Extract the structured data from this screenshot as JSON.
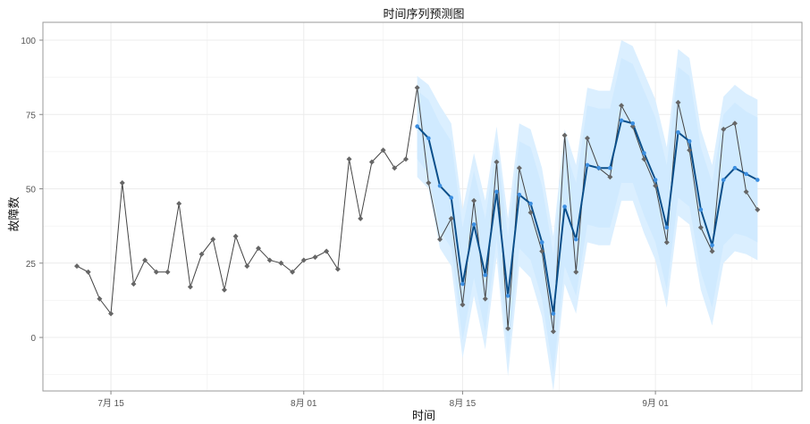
{
  "chart_data": {
    "type": "line",
    "title": "时间序列预测图",
    "xlabel": "时间",
    "ylabel": "故障数",
    "ylim": [
      -18,
      106
    ],
    "y_ticks": [
      0,
      25,
      50,
      75,
      100
    ],
    "x_ticks": [
      {
        "label": "7月 15",
        "index": 3
      },
      {
        "label": "8月 01",
        "index": 20
      },
      {
        "label": "8月 15",
        "index": 34
      },
      {
        "label": "9月 01",
        "index": 51
      }
    ],
    "x_start_index": 0,
    "x_end_index": 61,
    "grid": true,
    "colors": {
      "actual": "#444444",
      "actual_point": "#666666",
      "forecast": "#0b4f8a",
      "forecast_point": "#3b8ee0",
      "band_outer": "#dbefff",
      "band_inner": "#d0eaff",
      "panel_border": "#9a9a9a",
      "grid": "#ececec"
    },
    "series": [
      {
        "name": "actual",
        "x_start": 0,
        "values": [
          24,
          22,
          13,
          8,
          52,
          18,
          26,
          22,
          22,
          45,
          17,
          28,
          33,
          16,
          34,
          24,
          30,
          26,
          25,
          22,
          26,
          27,
          29,
          23,
          60,
          40,
          59,
          63,
          57,
          60,
          84,
          52,
          33,
          40,
          11,
          46,
          13,
          59,
          3,
          57,
          42,
          29,
          2,
          68,
          22,
          67,
          57,
          54,
          78,
          71,
          60,
          51,
          32,
          79,
          63,
          37,
          29,
          70,
          72,
          49,
          43
        ]
      },
      {
        "name": "forecast",
        "x_start": 30,
        "values": [
          71,
          67,
          51,
          47,
          18,
          38,
          21,
          49,
          14,
          48,
          45,
          32,
          8,
          44,
          33,
          58,
          57,
          57,
          73,
          72,
          62,
          53,
          37,
          69,
          66,
          43,
          31,
          53,
          57,
          55,
          53
        ]
      }
    ],
    "band_outer": {
      "x_start": 30,
      "upper": [
        88,
        85,
        78,
        72,
        43,
        62,
        46,
        71,
        40,
        72,
        70,
        57,
        34,
        70,
        58,
        84,
        83,
        83,
        100,
        98,
        89,
        80,
        64,
        97,
        94,
        70,
        58,
        81,
        85,
        82,
        80
      ],
      "lower": [
        54,
        50,
        30,
        24,
        -7,
        14,
        -4,
        27,
        -13,
        24,
        20,
        7,
        -18,
        18,
        8,
        32,
        31,
        31,
        46,
        46,
        35,
        26,
        10,
        41,
        38,
        16,
        4,
        25,
        29,
        28,
        26
      ]
    },
    "band_inner": {
      "x_start": 30,
      "upper": [
        83,
        80,
        72,
        66,
        37,
        56,
        40,
        66,
        34,
        66,
        64,
        51,
        28,
        64,
        52,
        78,
        77,
        77,
        94,
        92,
        83,
        74,
        58,
        91,
        88,
        64,
        52,
        75,
        79,
        76,
        74
      ],
      "lower": [
        60,
        55,
        36,
        30,
        -1,
        20,
        2,
        33,
        -7,
        30,
        26,
        13,
        -12,
        24,
        14,
        38,
        37,
        37,
        52,
        52,
        41,
        32,
        16,
        47,
        44,
        22,
        10,
        31,
        35,
        34,
        32
      ]
    }
  }
}
